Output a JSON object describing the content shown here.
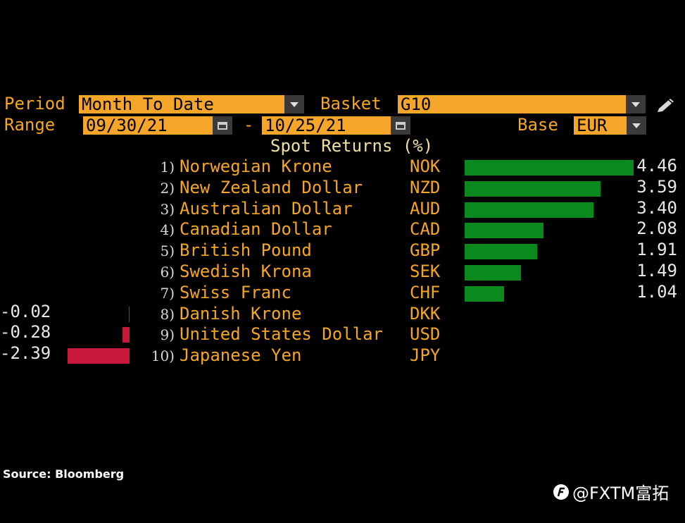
{
  "header": {
    "period_label": "Period",
    "period_value": "Month To Date",
    "basket_label": "Basket",
    "basket_value": "G10",
    "range_label": "Range",
    "range_start": "09/30/21",
    "range_sep": "-",
    "range_end": "10/25/21",
    "base_label": "Base",
    "base_value": "EUR"
  },
  "chart_data": {
    "type": "bar",
    "title": "Spot Returns (%)",
    "orientation": "horizontal",
    "rows": [
      {
        "rank": "1)",
        "name": "Norwegian Krone",
        "code": "NOK",
        "value": 4.46,
        "label": "4.46"
      },
      {
        "rank": "2)",
        "name": "New Zealand Dollar",
        "code": "NZD",
        "value": 3.59,
        "label": "3.59"
      },
      {
        "rank": "3)",
        "name": "Australian Dollar",
        "code": "AUD",
        "value": 3.4,
        "label": "3.40"
      },
      {
        "rank": "4)",
        "name": "Canadian Dollar",
        "code": "CAD",
        "value": 2.08,
        "label": "2.08"
      },
      {
        "rank": "5)",
        "name": "British Pound",
        "code": "GBP",
        "value": 1.91,
        "label": "1.91"
      },
      {
        "rank": "6)",
        "name": "Swedish Krona",
        "code": "SEK",
        "value": 1.49,
        "label": "1.49"
      },
      {
        "rank": "7)",
        "name": "Swiss Franc",
        "code": "CHF",
        "value": 1.04,
        "label": "1.04"
      },
      {
        "rank": "8)",
        "name": "Danish Krone",
        "code": "DKK",
        "value": -0.02,
        "label": "-0.02"
      },
      {
        "rank": "9)",
        "name": "United States Dollar",
        "code": "USD",
        "value": -0.28,
        "label": "-0.28"
      },
      {
        "rank": "10)",
        "name": "Japanese Yen",
        "code": "JPY",
        "value": -2.39,
        "label": "-2.39"
      }
    ],
    "colors": {
      "positive": "#0a8a1e",
      "negative": "#c8193c"
    }
  },
  "footer": {
    "source": "Source: Bloomberg",
    "watermark": "@FXTM富拓"
  }
}
